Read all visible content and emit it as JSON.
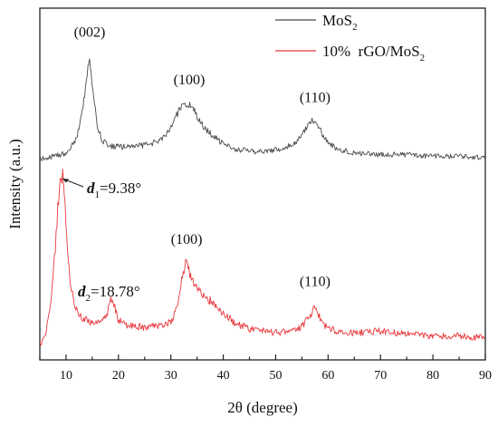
{
  "chart_data": {
    "type": "line",
    "xlabel": "2θ (degree)",
    "ylabel": "Intensity (a.u.)",
    "xlim": [
      5,
      90
    ],
    "x_ticks": [
      "10",
      "20",
      "30",
      "40",
      "50",
      "60",
      "70",
      "80",
      "90"
    ],
    "y_ticks_shown": false,
    "grid": false,
    "legend": {
      "placement": "top-right",
      "entries": [
        {
          "name": "MoS",
          "subscript": "2",
          "color": "#4a4a4a"
        },
        {
          "name": "10%  rGO/MoS",
          "subscript": "2",
          "color": "#e8383d"
        }
      ]
    },
    "series": [
      {
        "name": "MoS2",
        "color": "#4a4a4a",
        "x": [
          5,
          8,
          10,
          12,
          13,
          14,
          14.5,
          15,
          16,
          17,
          18,
          20,
          22,
          25,
          27,
          29,
          30,
          31,
          32,
          33,
          34,
          35,
          36,
          38,
          40,
          42,
          45,
          48,
          50,
          52,
          54,
          55,
          56,
          57,
          58,
          59,
          60,
          62,
          65,
          70,
          75,
          80,
          85,
          90
        ],
        "y": [
          0.02,
          0.04,
          0.06,
          0.15,
          0.3,
          0.55,
          0.68,
          0.5,
          0.22,
          0.14,
          0.11,
          0.1,
          0.1,
          0.11,
          0.13,
          0.17,
          0.22,
          0.3,
          0.36,
          0.38,
          0.36,
          0.3,
          0.24,
          0.17,
          0.12,
          0.09,
          0.07,
          0.07,
          0.08,
          0.1,
          0.14,
          0.18,
          0.24,
          0.27,
          0.24,
          0.18,
          0.13,
          0.08,
          0.06,
          0.05,
          0.05,
          0.04,
          0.04,
          0.03
        ],
        "labels": [
          {
            "text": "(002)",
            "x": 14.5
          },
          {
            "text": "(100)",
            "x": 33.5
          },
          {
            "text": "(110)",
            "x": 57.5
          }
        ]
      },
      {
        "name": "10% rGO/MoS2",
        "color": "#e8383d",
        "x": [
          5,
          6,
          7,
          8,
          8.5,
          9,
          9.38,
          9.8,
          10.3,
          11,
          12,
          13,
          14,
          16,
          17.5,
          18.78,
          20,
          22,
          25,
          28,
          30,
          31,
          32,
          32.8,
          34,
          36,
          38,
          40,
          42,
          45,
          50,
          54,
          56,
          57.5,
          59,
          62,
          66,
          70,
          75,
          80,
          85,
          90
        ],
        "y": [
          0.02,
          0.07,
          0.22,
          0.6,
          0.85,
          1.0,
          1.0,
          0.82,
          0.55,
          0.34,
          0.22,
          0.18,
          0.16,
          0.14,
          0.17,
          0.3,
          0.16,
          0.13,
          0.12,
          0.13,
          0.15,
          0.22,
          0.38,
          0.5,
          0.4,
          0.32,
          0.26,
          0.2,
          0.15,
          0.11,
          0.09,
          0.1,
          0.16,
          0.24,
          0.14,
          0.09,
          0.09,
          0.1,
          0.08,
          0.07,
          0.07,
          0.06
        ],
        "labels": [
          {
            "text": "(100)",
            "x": 33
          },
          {
            "text": "(110)",
            "x": 57.5
          }
        ]
      }
    ],
    "annotations": [
      {
        "symbol": "d",
        "subscript": "1",
        "value": "=9.38°",
        "x": 9.38,
        "arrow": true
      },
      {
        "symbol": "d",
        "subscript": "2",
        "value": "=18.78°",
        "x": 18.78,
        "arrow": false
      }
    ]
  }
}
